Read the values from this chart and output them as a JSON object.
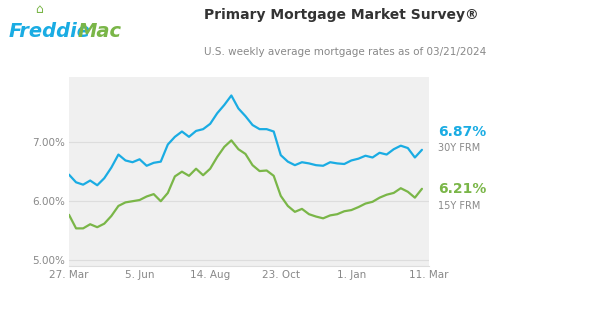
{
  "title": "Primary Mortgage Market Survey®",
  "subtitle": "U.S. weekly average mortgage rates as of 03/21/2024",
  "freddie_blue": "#1AACE3",
  "freddie_green": "#7AB648",
  "freddie_text_dark": "#333333",
  "bg_color": "#FFFFFF",
  "plot_bg_color": "#F0F0F0",
  "grid_color": "#DDDDDD",
  "tick_color": "#888888",
  "x_tick_labels": [
    "27. Mar",
    "5. Jun",
    "14. Aug",
    "23. Oct",
    "1. Jan",
    "11. Mar"
  ],
  "x_tick_positions": [
    0,
    10,
    20,
    30,
    40,
    51
  ],
  "ylim": [
    4.9,
    8.1
  ],
  "yticks": [
    5.0,
    6.0,
    7.0
  ],
  "ytick_labels": [
    "5.00%",
    "6.00%",
    "7.00%"
  ],
  "line_30y_color": "#1AACE3",
  "line_15y_color": "#7AB648",
  "line_30y": [
    6.45,
    6.32,
    6.28,
    6.35,
    6.27,
    6.39,
    6.57,
    6.79,
    6.69,
    6.66,
    6.71,
    6.6,
    6.65,
    6.67,
    6.96,
    7.09,
    7.18,
    7.09,
    7.19,
    7.22,
    7.31,
    7.49,
    7.63,
    7.79,
    7.57,
    7.44,
    7.29,
    7.22,
    7.22,
    7.18,
    6.78,
    6.67,
    6.61,
    6.66,
    6.64,
    6.61,
    6.6,
    6.66,
    6.64,
    6.63,
    6.69,
    6.72,
    6.77,
    6.74,
    6.82,
    6.79,
    6.88,
    6.94,
    6.9,
    6.74,
    6.87
  ],
  "line_15y": [
    5.77,
    5.54,
    5.54,
    5.61,
    5.56,
    5.62,
    5.75,
    5.92,
    5.98,
    6.0,
    6.02,
    6.08,
    6.12,
    6.0,
    6.14,
    6.42,
    6.5,
    6.43,
    6.55,
    6.44,
    6.55,
    6.75,
    6.92,
    7.03,
    6.88,
    6.8,
    6.61,
    6.51,
    6.52,
    6.43,
    6.09,
    5.92,
    5.82,
    5.87,
    5.78,
    5.74,
    5.71,
    5.76,
    5.78,
    5.83,
    5.85,
    5.9,
    5.96,
    5.99,
    6.06,
    6.11,
    6.14,
    6.22,
    6.16,
    6.06,
    6.21
  ]
}
